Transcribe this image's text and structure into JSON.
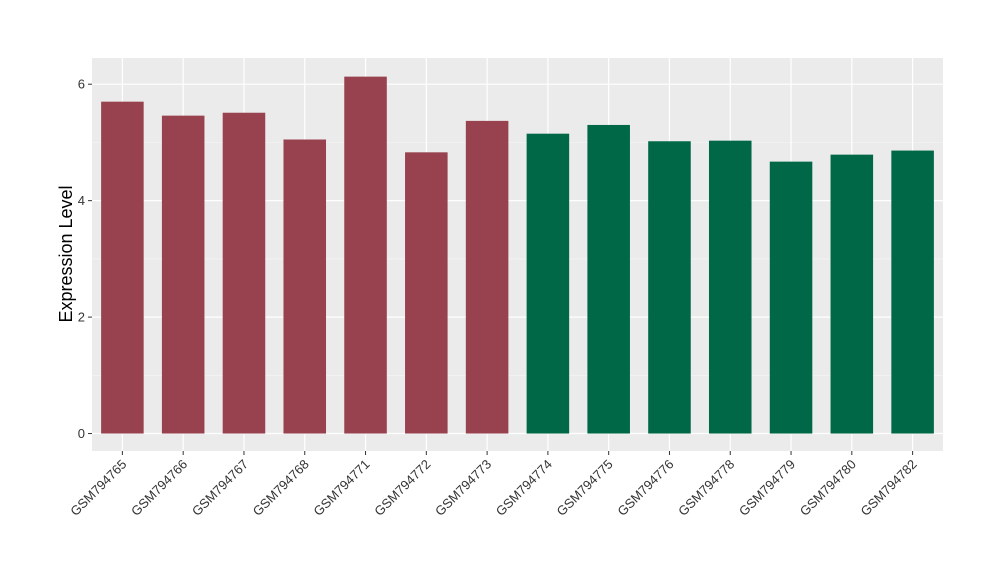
{
  "chart_data": {
    "type": "bar",
    "title": "",
    "xlabel": "",
    "ylabel": "Expression Level",
    "ylim": [
      -0.3,
      6.45
    ],
    "yticks": [
      0,
      2,
      4,
      6
    ],
    "grid": true,
    "legend": "none",
    "panel_background": "#EBEBEB",
    "categories": [
      "GSM794765",
      "GSM794766",
      "GSM794767",
      "GSM794768",
      "GSM794771",
      "GSM794772",
      "GSM794773",
      "GSM794774",
      "GSM794775",
      "GSM794776",
      "GSM794778",
      "GSM794779",
      "GSM794780",
      "GSM794782"
    ],
    "values": [
      5.7,
      5.46,
      5.51,
      5.05,
      6.13,
      4.83,
      5.37,
      5.15,
      5.3,
      5.02,
      5.03,
      4.67,
      4.79,
      4.86
    ],
    "bar_colors": [
      "#98424F",
      "#98424F",
      "#98424F",
      "#98424F",
      "#98424F",
      "#98424F",
      "#98424F",
      "#006847",
      "#006847",
      "#006847",
      "#006847",
      "#006847",
      "#006847",
      "#006847"
    ]
  }
}
